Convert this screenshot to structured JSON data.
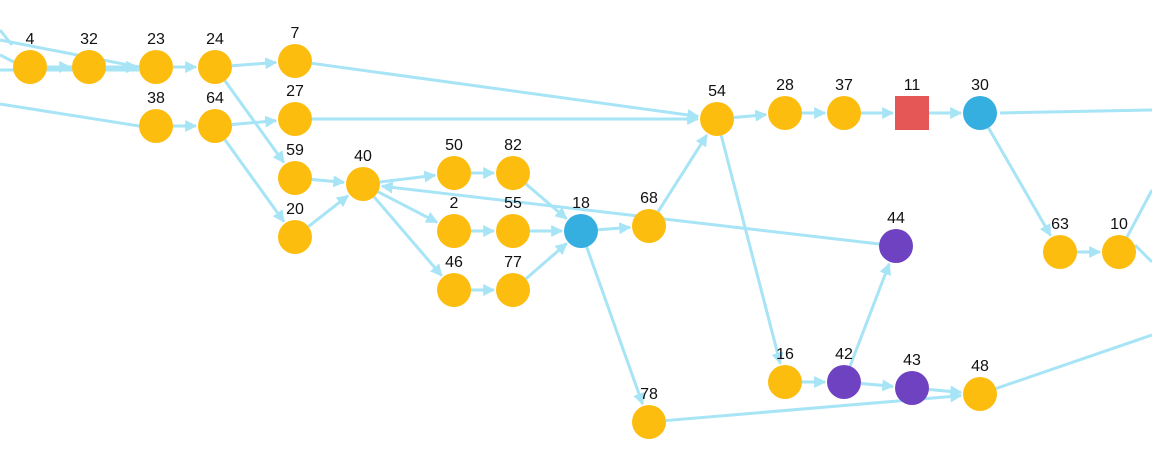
{
  "colors": {
    "edge": "#a6e4f6",
    "default_node": "#fdbd0f",
    "hub_node": "#35aee0",
    "purple_node": "#6f42c1",
    "square_node": "#e55757"
  },
  "nodes": [
    {
      "id": "4",
      "label": "4",
      "kind": "default"
    },
    {
      "id": "32",
      "label": "32",
      "kind": "default"
    },
    {
      "id": "23",
      "label": "23",
      "kind": "default"
    },
    {
      "id": "24",
      "label": "24",
      "kind": "default"
    },
    {
      "id": "7",
      "label": "7",
      "kind": "default"
    },
    {
      "id": "38",
      "label": "38",
      "kind": "default"
    },
    {
      "id": "64",
      "label": "64",
      "kind": "default"
    },
    {
      "id": "27",
      "label": "27",
      "kind": "default"
    },
    {
      "id": "59",
      "label": "59",
      "kind": "default"
    },
    {
      "id": "20",
      "label": "20",
      "kind": "default"
    },
    {
      "id": "40",
      "label": "40",
      "kind": "default"
    },
    {
      "id": "50",
      "label": "50",
      "kind": "default"
    },
    {
      "id": "82",
      "label": "82",
      "kind": "default"
    },
    {
      "id": "2",
      "label": "2",
      "kind": "default"
    },
    {
      "id": "55",
      "label": "55",
      "kind": "default"
    },
    {
      "id": "46",
      "label": "46",
      "kind": "default"
    },
    {
      "id": "77",
      "label": "77",
      "kind": "default"
    },
    {
      "id": "18",
      "label": "18",
      "kind": "hub"
    },
    {
      "id": "68",
      "label": "68",
      "kind": "default"
    },
    {
      "id": "78",
      "label": "78",
      "kind": "default"
    },
    {
      "id": "54",
      "label": "54",
      "kind": "default"
    },
    {
      "id": "28",
      "label": "28",
      "kind": "default"
    },
    {
      "id": "37",
      "label": "37",
      "kind": "default"
    },
    {
      "id": "11",
      "label": "11",
      "kind": "square"
    },
    {
      "id": "30",
      "label": "30",
      "kind": "hub"
    },
    {
      "id": "44",
      "label": "44",
      "kind": "purple"
    },
    {
      "id": "16",
      "label": "16",
      "kind": "default"
    },
    {
      "id": "42",
      "label": "42",
      "kind": "purple"
    },
    {
      "id": "43",
      "label": "43",
      "kind": "purple"
    },
    {
      "id": "48",
      "label": "48",
      "kind": "default"
    },
    {
      "id": "63",
      "label": "63",
      "kind": "default"
    },
    {
      "id": "10",
      "label": "10",
      "kind": "default"
    }
  ],
  "edges": [
    {
      "from": "4",
      "to": "32"
    },
    {
      "from": "32",
      "to": "23"
    },
    {
      "from": "4",
      "to": "23"
    },
    {
      "from": "23",
      "to": "24"
    },
    {
      "from": "24",
      "to": "7"
    },
    {
      "from": "24",
      "to": "59"
    },
    {
      "from": "38",
      "to": "64"
    },
    {
      "from": "64",
      "to": "27"
    },
    {
      "from": "64",
      "to": "20"
    },
    {
      "from": "7",
      "to": "54"
    },
    {
      "from": "27",
      "to": "54"
    },
    {
      "from": "59",
      "to": "40"
    },
    {
      "from": "20",
      "to": "40"
    },
    {
      "from": "40",
      "to": "50"
    },
    {
      "from": "40",
      "to": "2"
    },
    {
      "from": "40",
      "to": "46"
    },
    {
      "from": "50",
      "to": "82"
    },
    {
      "from": "82",
      "to": "18"
    },
    {
      "from": "2",
      "to": "55"
    },
    {
      "from": "55",
      "to": "18"
    },
    {
      "from": "46",
      "to": "77"
    },
    {
      "from": "77",
      "to": "18"
    },
    {
      "from": "18",
      "to": "68"
    },
    {
      "from": "18",
      "to": "78"
    },
    {
      "from": "68",
      "to": "54"
    },
    {
      "from": "44",
      "to": "40"
    },
    {
      "from": "54",
      "to": "28"
    },
    {
      "from": "28",
      "to": "37"
    },
    {
      "from": "37",
      "to": "11"
    },
    {
      "from": "11",
      "to": "30"
    },
    {
      "from": "54",
      "to": "16"
    },
    {
      "from": "16",
      "to": "42"
    },
    {
      "from": "42",
      "to": "44"
    },
    {
      "from": "42",
      "to": "43"
    },
    {
      "from": "43",
      "to": "48"
    },
    {
      "from": "78",
      "to": "48"
    },
    {
      "from": "30",
      "to": "63"
    },
    {
      "from": "63",
      "to": "10"
    }
  ]
}
